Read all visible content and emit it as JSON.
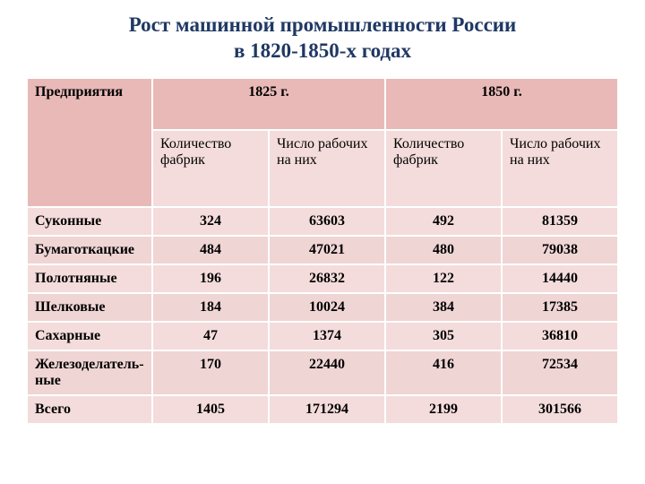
{
  "title_line1": "Рост машинной промышленности России",
  "title_line2": "в 1820-1850-х годах",
  "table": {
    "header": {
      "enterprises": "Предприятия",
      "year1": "1825 г.",
      "year2": "1850 г.",
      "sub_factories": "Количество фабрик",
      "sub_workers": "Число рабочих на них"
    },
    "rows": [
      {
        "name": "Суконные",
        "y1f": "324",
        "y1w": "63603",
        "y2f": "492",
        "y2w": "81359"
      },
      {
        "name": "Бумаготкацкие",
        "y1f": "484",
        "y1w": "47021",
        "y2f": "480",
        "y2w": "79038"
      },
      {
        "name": "Полотняные",
        "y1f": "196",
        "y1w": "26832",
        "y2f": "122",
        "y2w": "14440"
      },
      {
        "name": "Шелковые",
        "y1f": "184",
        "y1w": "10024",
        "y2f": "384",
        "y2w": "17385"
      },
      {
        "name": "Сахарные",
        "y1f": "47",
        "y1w": "1374",
        "y2f": "305",
        "y2w": "36810"
      },
      {
        "name": "Железоделатель-ные",
        "y1f": "170",
        "y1w": "22440",
        "y2f": "416",
        "y2w": "72534"
      },
      {
        "name": "Всего",
        "y1f": "1405",
        "y1w": "171294",
        "y2f": "2199",
        "y2w": "301566"
      }
    ],
    "colors": {
      "title_color": "#1f3864",
      "header_bg": "#e8b9b7",
      "row_bg": "#f3dcdb",
      "row_alt_bg": "#efd5d4",
      "border_color": "#ffffff"
    }
  }
}
